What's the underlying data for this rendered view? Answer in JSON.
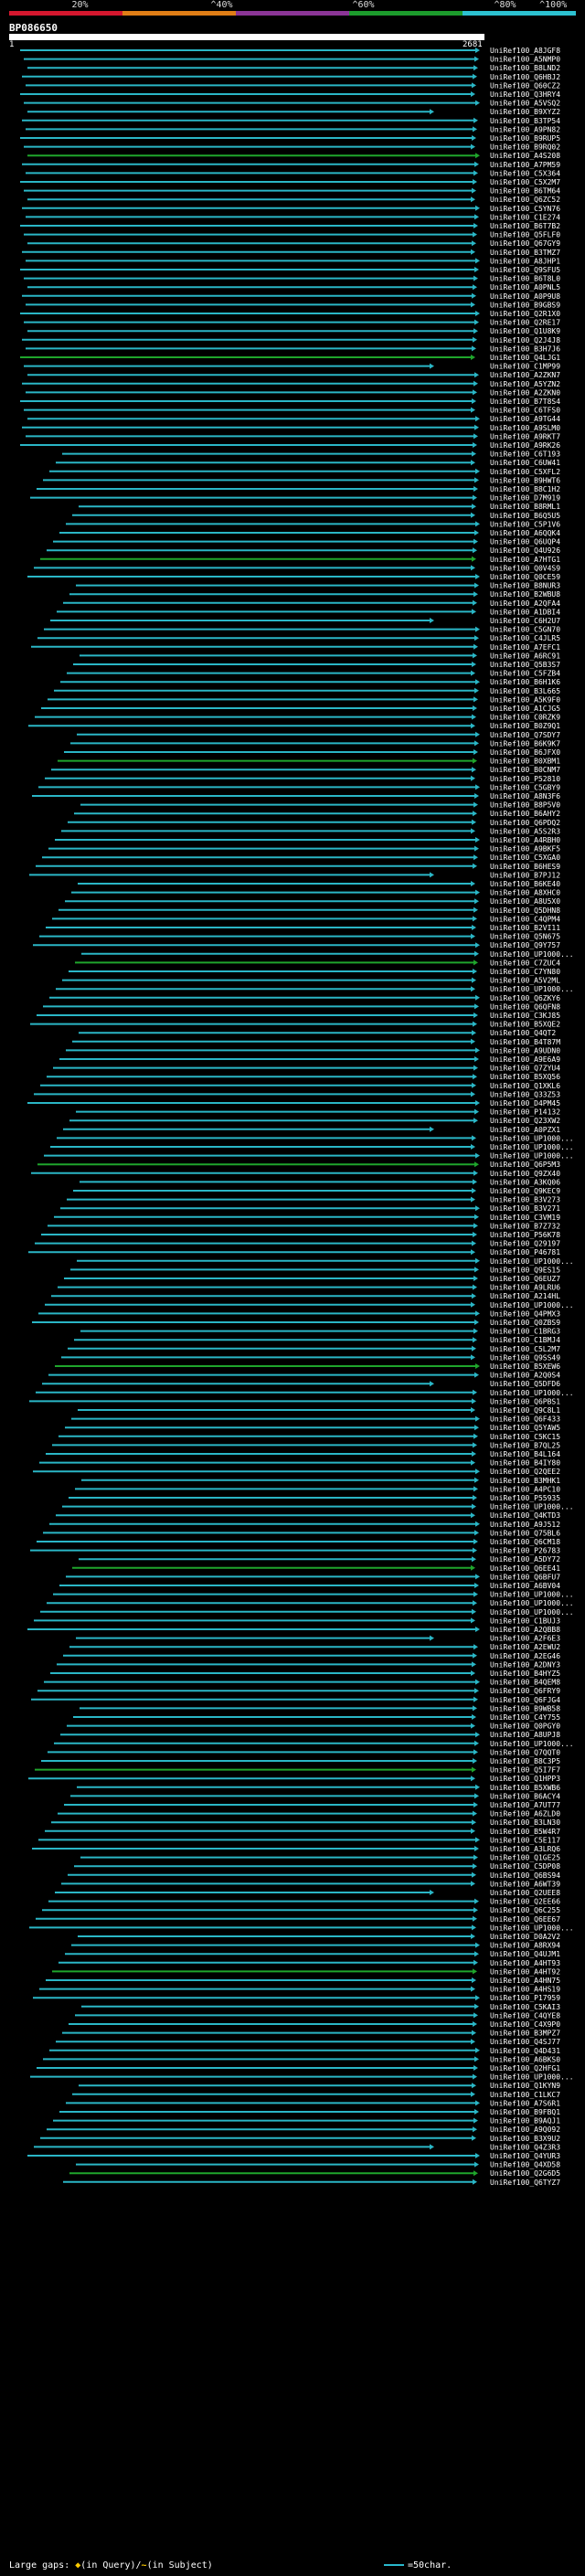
{
  "scale": {
    "labels": [
      "20%",
      "^40%",
      "^60%",
      "^80%",
      "^100%"
    ],
    "colors": [
      "#d5172e",
      "#e07e16",
      "#8b3596",
      "#1c9c2c",
      "#2cc1d0"
    ]
  },
  "query": {
    "id": "BP086650",
    "start": "1",
    "end": "2681"
  },
  "colors": {
    "cyan": "#2ab6c6",
    "green": "#1fa52c",
    "line_dark": "#0a3a40",
    "label": "#ffffff"
  },
  "hits": [
    "UniRef100_A8JGF8",
    "UniRef100_A5NMP0",
    "UniRef100_B8LND2",
    "UniRef100_Q6HBJ2",
    "UniRef100_Q60CZ2",
    "UniRef100_Q3HRY4",
    "UniRef100_A5VSQ2",
    "UniRef100_B9XYZ2",
    "UniRef100_B3TP54",
    "UniRef100_A9PN82",
    "UniRef100_B9RUP5",
    "UniRef100_B9RQ02",
    "UniRef100_A4S208",
    "UniRef100_A7PM59",
    "UniRef100_C5X364",
    "UniRef100_C5X2M7",
    "UniRef100_B6TM64",
    "UniRef100_Q6ZC52",
    "UniRef100_C5YN76",
    "UniRef100_C1E274",
    "UniRef100_B6T7B2",
    "UniRef100_Q5FLF0",
    "UniRef100_Q67GY9",
    "UniRef100_B3TMZ7",
    "UniRef100_A8JHP1",
    "UniRef100_Q9SFU5",
    "UniRef100_B6T8L0",
    "UniRef100_A0PNL5",
    "UniRef100_A0P9U8",
    "UniRef100_B9GBS9",
    "UniRef100_Q2R1X0",
    "UniRef100_Q2RE17",
    "UniRef100_Q1U8K9",
    "UniRef100_Q2J4J8",
    "UniRef100_B3H7J6",
    "UniRef100_Q4LJG1",
    "UniRef100_C1MP99",
    "UniRef100_A2ZKN7",
    "UniRef100_A5YZN2",
    "UniRef100_A2ZKN0",
    "UniRef100_B7T8S4",
    "UniRef100_C6TFS0",
    "UniRef100_A9TG44",
    "UniRef100_A9SLM0",
    "UniRef100_A9RKT7",
    "UniRef100_A9RK26",
    "UniRef100_C6T193",
    "UniRef100_C6UW41",
    "UniRef100_C5XFL2",
    "UniRef100_B9HWT6",
    "UniRef100_B8C1H2",
    "UniRef100_D7M919",
    "UniRef100_B8RML1",
    "UniRef100_B6Q5U5",
    "UniRef100_C5P1V6",
    "UniRef100_A6QQK4",
    "UniRef100_Q6UQP4",
    "UniRef100_Q4U926",
    "UniRef100_A7HTG1",
    "UniRef100_Q0V4S9",
    "UniRef100_Q0CE59",
    "UniRef100_B8NUR3",
    "UniRef100_B2WBU8",
    "UniRef100_A2QFA4",
    "UniRef100_A1DBI4",
    "UniRef100_C6H2U7",
    "UniRef100_C5GN70",
    "UniRef100_C4JLR5",
    "UniRef100_A7EFC1",
    "UniRef100_A6RC91",
    "UniRef100_Q5B3S7",
    "UniRef100_C5FZB4",
    "UniRef100_B6H1K6",
    "UniRef100_B3L665",
    "UniRef100_A5K9F0",
    "UniRef100_A1CJG5",
    "UniRef100_C0RZK9",
    "UniRef100_B0Z9Q1",
    "UniRef100_Q7SDY7",
    "UniRef100_B6K9K7",
    "UniRef100_B6JFX0",
    "UniRef100_B0XBM1",
    "UniRef100_B0CNM7",
    "UniRef100_P52810",
    "UniRef100_C5GBY9",
    "UniRef100_A8N3F6",
    "UniRef100_B8P5V0",
    "UniRef100_B6AHY2",
    "UniRef100_Q6PDQ2",
    "UniRef100_A5S2R3",
    "UniRef100_A4RBH0",
    "UniRef100_A9BKF5",
    "UniRef100_C5XGA0",
    "UniRef100_B6HES9",
    "UniRef100_B7PJ12",
    "UniRef100_B6KE40",
    "UniRef100_A8XHC0",
    "UniRef100_A8U5X0",
    "UniRef100_Q5DHN8",
    "UniRef100_C4QPM4",
    "UniRef100_B2VI11",
    "UniRef100_Q5N675",
    "UniRef100_Q9Y757",
    "UniRef100_UP1000...",
    "UniRef100_C7ZUC4",
    "UniRef100_C7YN80",
    "UniRef100_A5V2ML",
    "UniRef100_UP1000...",
    "UniRef100_Q6ZKY6",
    "UniRef100_Q6QFN8",
    "UniRef100_C3KJ85",
    "UniRef100_B5XQE2",
    "UniRef100_Q4QT2",
    "UniRef100_B4T87M",
    "UniRef100_A9UDN0",
    "UniRef100_A9E6A9",
    "UniRef100_Q7ZYU4",
    "UniRef100_B5XQ56",
    "UniRef100_Q1XKL6",
    "UniRef100_Q33Z53",
    "UniRef100_D4PM45",
    "UniRef100_P14132",
    "UniRef100_Q23XW2",
    "UniRef100_A0PZX1",
    "UniRef100_UP1000...",
    "UniRef100_UP1000...",
    "UniRef100_UP1000...",
    "UniRef100_Q6P5M3",
    "UniRef100_Q9ZX40",
    "UniRef100_A3KQ06",
    "UniRef100_Q9KEC9",
    "UniRef100_B3V273",
    "UniRef100_B3V271",
    "UniRef100_C3VM19",
    "UniRef100_B7Z732",
    "UniRef100_P56K78",
    "UniRef100_Q29197",
    "UniRef100_P46781",
    "UniRef100_UP1000...",
    "UniRef100_Q9ES15",
    "UniRef100_Q6EUZ7",
    "UniRef100_A9LRU6",
    "UniRef100_A214HL",
    "UniRef100_UP1000...",
    "UniRef100_Q4PMX3",
    "UniRef100_Q0ZBS9",
    "UniRef100_C1BRG3",
    "UniRef100_C1BMJ4",
    "UniRef100_C5L2M7",
    "UniRef100_Q9SS49",
    "UniRef100_B5XEW6",
    "UniRef100_A2Q0S4",
    "UniRef100_Q5DFD6",
    "UniRef100_UP1000...",
    "UniRef100_Q6PBS1",
    "UniRef100_Q9C8L1",
    "UniRef100_Q6F433",
    "UniRef100_Q5YAW5",
    "UniRef100_C5KC15",
    "UniRef100_B7QL25",
    "UniRef100_B4L164",
    "UniRef100_B4IY80",
    "UniRef100_Q2QEE2",
    "UniRef100_B3MHK1",
    "UniRef100_A4PC10",
    "UniRef100_P55935",
    "UniRef100_UP1000...",
    "UniRef100_Q4KTD3",
    "UniRef100_A9J512",
    "UniRef100_Q75BL6",
    "UniRef100_Q6CM18",
    "UniRef100_P26783",
    "UniRef100_A5DY72",
    "UniRef100_Q6EE41",
    "UniRef100_Q6BFU7",
    "UniRef100_A6BV04",
    "UniRef100_UP1000...",
    "UniRef100_UP1000...",
    "UniRef100_UP1000...",
    "UniRef100_C1BUJ3",
    "UniRef100_A2QBB8",
    "UniRef100_A2F6E3",
    "UniRef100_A2EWU2",
    "UniRef100_A2EG46",
    "UniRef100_A2DNY3",
    "UniRef100_B4HYZ5",
    "UniRef100_B4QEM8",
    "UniRef100_Q6FRY9",
    "UniRef100_Q6FJG4",
    "UniRef100_B9WB58",
    "UniRef100_C4Y755",
    "UniRef100_Q0PGY0",
    "UniRef100_A8UPJ8",
    "UniRef100_UP1000...",
    "UniRef100_Q7QQT0",
    "UniRef100_B8C3P5",
    "UniRef100_Q5I7F7",
    "UniRef100_Q1HPP3",
    "UniRef100_B5XWB6",
    "UniRef100_B6ACY4",
    "UniRef100_A7UT77",
    "UniRef100_A6ZLD0",
    "UniRef100_B3LN30",
    "UniRef100_B5W4R7",
    "UniRef100_C5E117",
    "UniRef100_A3LRQ6",
    "UniRef100_Q1GE25",
    "UniRef100_C5DP08",
    "UniRef100_Q6BS94",
    "UniRef100_A6WT39",
    "UniRef100_Q2UEE8",
    "UniRef100_Q2EE66",
    "UniRef100_Q6C255",
    "UniRef100_Q6EE67",
    "UniRef100_UP1000...",
    "UniRef100_D0A2V2",
    "UniRef100_A8RX94",
    "UniRef100_Q4UJM1",
    "UniRef100_A4HT93",
    "UniRef100_A4HT92",
    "UniRef100_A4HN75",
    "UniRef100_A4HS19",
    "UniRef100_P17959",
    "UniRef100_C5KAI3",
    "UniRef100_C4QYE8",
    "UniRef100_C4X9P0",
    "UniRef100_B3MPZ7",
    "UniRef100_Q4SJ77",
    "UniRef100_Q4D431",
    "UniRef100_A6BKS0",
    "UniRef100_Q2HFG1",
    "UniRef100_UP1000...",
    "UniRef100_Q1KYN9",
    "UniRef100_C1LKC7",
    "UniRef100_A7S6R1",
    "UniRef100_B9FBQ1",
    "UniRef100_B9AQJ1",
    "UniRef100_A9Q092",
    "UniRef100_B3X9U2",
    "UniRef100_Q4Z3R3",
    "UniRef100_Q4YUR3",
    "UniRef100_Q4XD58",
    "UniRef100_Q2G6D5",
    "UniRef100_Q6TYZ7"
  ],
  "legend": {
    "text": "Large gaps:",
    "query_glyph": "◆",
    "query_label": "(in Query)/",
    "subject_glyph": "~",
    "subject_label": "(in Subject)",
    "scale_label": "=50char."
  }
}
